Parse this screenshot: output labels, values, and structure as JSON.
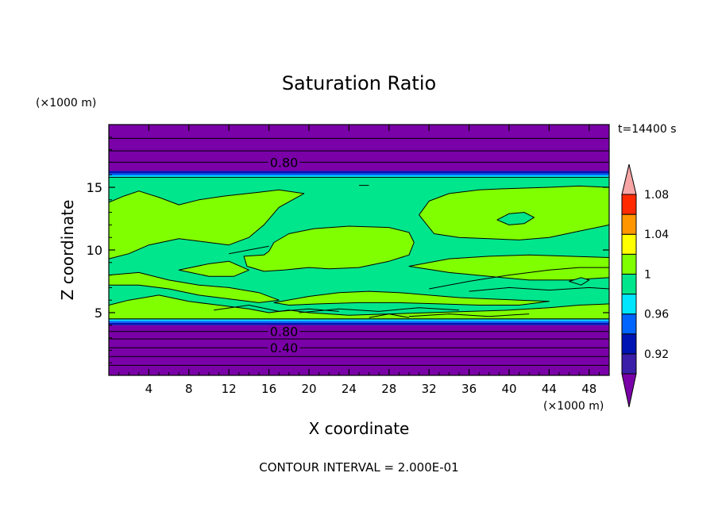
{
  "chart_data": {
    "type": "heatmap",
    "title": "Saturation Ratio",
    "xlabel": "X coordinate",
    "ylabel": "Z coordinate",
    "x_unit": "(×1000 m)",
    "y_unit": "(×1000 m)",
    "time_label": "t=14400 s",
    "footer": "CONTOUR INTERVAL = 2.000E-01",
    "xlim": [
      0,
      50
    ],
    "ylim": [
      0,
      20
    ],
    "x_ticks": [
      4,
      8,
      12,
      16,
      20,
      24,
      28,
      32,
      36,
      40,
      44,
      48
    ],
    "y_ticks": [
      5,
      10,
      15
    ],
    "contour_labels": [
      {
        "text": "0.80",
        "x": 17.5,
        "z": 17.0
      },
      {
        "text": "0.80",
        "x": 17.5,
        "z": 3.5
      },
      {
        "text": "0.40",
        "x": 17.5,
        "z": 2.2
      }
    ],
    "colorbar": {
      "levels": [
        0.9,
        0.92,
        0.94,
        0.96,
        0.98,
        1.0,
        1.02,
        1.04,
        1.06,
        1.08,
        1.1
      ],
      "colors": [
        "#7a00a8",
        "#3b1fa8",
        "#0014b4",
        "#0064ff",
        "#00e6ff",
        "#00e68c",
        "#7fff00",
        "#ffff00",
        "#ff9600",
        "#ff2a00",
        "#f7a5a5"
      ],
      "tick_labels": [
        "0.92",
        "0.96",
        "1",
        "1.04",
        "1.08"
      ]
    },
    "bands": [
      {
        "z0": 0,
        "z1": 4.0,
        "color": "#7a00a8"
      },
      {
        "z0": 4.0,
        "z1": 4.2,
        "color": "#0014b4"
      },
      {
        "z0": 4.2,
        "z1": 4.35,
        "color": "#0064ff"
      },
      {
        "z0": 4.35,
        "z1": 4.5,
        "color": "#00e6ff"
      },
      {
        "z0": 4.5,
        "z1": 15.8,
        "color": "#00e68c"
      },
      {
        "z0": 15.8,
        "z1": 15.95,
        "color": "#00e6ff"
      },
      {
        "z0": 15.95,
        "z1": 16.1,
        "color": "#0064ff"
      },
      {
        "z0": 16.1,
        "z1": 16.3,
        "color": "#0014b4"
      },
      {
        "z0": 16.3,
        "z1": 20,
        "color": "#7a00a8"
      }
    ],
    "contour_lines_z": [
      0.8,
      1.5,
      2.2,
      2.9,
      3.5,
      17.0,
      17.9,
      18.9
    ],
    "regions": [
      {
        "fill": "#7fff00",
        "points": [
          [
            0,
            13.8
          ],
          [
            1.5,
            14.3
          ],
          [
            3,
            14.7
          ],
          [
            5,
            14.2
          ],
          [
            7,
            13.6
          ],
          [
            9,
            14.0
          ],
          [
            11.5,
            14.3
          ],
          [
            15,
            14.6
          ],
          [
            17,
            14.8
          ],
          [
            19.5,
            14.5
          ],
          [
            17,
            13.4
          ],
          [
            15.5,
            12.0
          ],
          [
            14,
            11.0
          ],
          [
            12,
            10.4
          ],
          [
            10,
            10.6
          ],
          [
            7,
            10.9
          ],
          [
            4,
            10.4
          ],
          [
            2,
            9.7
          ],
          [
            0,
            9.3
          ]
        ]
      },
      {
        "fill": "#7fff00",
        "points": [
          [
            0,
            5.6
          ],
          [
            2,
            6.0
          ],
          [
            5,
            6.4
          ],
          [
            8,
            5.9
          ],
          [
            11,
            5.6
          ],
          [
            14,
            5.3
          ],
          [
            16,
            5.0
          ],
          [
            18,
            5.2
          ],
          [
            20,
            5.0
          ],
          [
            24,
            4.8
          ],
          [
            28,
            4.9
          ],
          [
            32,
            5.0
          ],
          [
            36,
            5.1
          ],
          [
            40,
            5.2
          ],
          [
            44,
            5.4
          ],
          [
            47,
            5.6
          ],
          [
            50,
            5.7
          ],
          [
            50,
            4.5
          ],
          [
            0,
            4.5
          ]
        ]
      },
      {
        "fill": "#7fff00",
        "points": [
          [
            13.5,
            9.5
          ],
          [
            15.5,
            9.6
          ],
          [
            16,
            9.9
          ],
          [
            16.5,
            10.6
          ],
          [
            18,
            11.3
          ],
          [
            20.5,
            11.7
          ],
          [
            24,
            11.9
          ],
          [
            28,
            11.8
          ],
          [
            30,
            11.4
          ],
          [
            30.5,
            10.6
          ],
          [
            30,
            9.6
          ],
          [
            28,
            9.1
          ],
          [
            25,
            8.6
          ],
          [
            22,
            8.5
          ],
          [
            20,
            8.6
          ],
          [
            17.5,
            8.4
          ],
          [
            15.5,
            8.3
          ],
          [
            13.8,
            8.7
          ]
        ]
      },
      {
        "fill": "#7fff00",
        "points": [
          [
            31,
            12.8
          ],
          [
            32,
            13.9
          ],
          [
            34,
            14.5
          ],
          [
            37,
            14.8
          ],
          [
            40,
            14.9
          ],
          [
            44,
            15.0
          ],
          [
            47,
            15.1
          ],
          [
            50,
            15.0
          ],
          [
            50,
            12.0
          ],
          [
            47,
            11.5
          ],
          [
            44,
            11.0
          ],
          [
            41,
            10.8
          ],
          [
            38,
            10.9
          ],
          [
            35,
            11.0
          ],
          [
            32.5,
            11.3
          ]
        ]
      },
      {
        "fill": "#7fff00",
        "points": [
          [
            30,
            8.7
          ],
          [
            34,
            9.3
          ],
          [
            38,
            9.5
          ],
          [
            42,
            9.6
          ],
          [
            46,
            9.5
          ],
          [
            50,
            9.4
          ],
          [
            50,
            7.8
          ],
          [
            46,
            7.6
          ],
          [
            42,
            7.6
          ],
          [
            38,
            7.9
          ],
          [
            34,
            8.2
          ]
        ]
      },
      {
        "fill": "#7fff00",
        "points": [
          [
            0,
            8.0
          ],
          [
            3,
            8.2
          ],
          [
            6,
            7.6
          ],
          [
            9,
            7.2
          ],
          [
            12,
            7.0
          ],
          [
            15,
            6.6
          ],
          [
            17,
            6.0
          ],
          [
            15,
            5.8
          ],
          [
            12,
            6.1
          ],
          [
            9,
            6.4
          ],
          [
            6,
            6.9
          ],
          [
            3,
            7.2
          ],
          [
            0,
            7.2
          ]
        ]
      },
      {
        "fill": "#7fff00",
        "points": [
          [
            7,
            8.4
          ],
          [
            10,
            8.9
          ],
          [
            12,
            9.1
          ],
          [
            14,
            8.4
          ],
          [
            12.5,
            7.9
          ],
          [
            10,
            7.9
          ]
        ]
      },
      {
        "fill": "#7fff00",
        "points": [
          [
            16.5,
            5.8
          ],
          [
            20,
            6.3
          ],
          [
            23,
            6.6
          ],
          [
            26,
            6.7
          ],
          [
            29,
            6.6
          ],
          [
            32,
            6.4
          ],
          [
            35,
            6.2
          ],
          [
            38,
            6.1
          ],
          [
            41,
            6.0
          ],
          [
            44,
            5.9
          ],
          [
            41,
            5.6
          ],
          [
            37,
            5.6
          ],
          [
            33,
            5.7
          ],
          [
            29,
            5.8
          ],
          [
            25,
            5.8
          ],
          [
            21,
            5.7
          ],
          [
            18,
            5.6
          ]
        ]
      },
      {
        "fill": "#00e68c",
        "points": [
          [
            38.8,
            12.4
          ],
          [
            40,
            12.9
          ],
          [
            41.5,
            13.0
          ],
          [
            42.5,
            12.6
          ],
          [
            41.5,
            12.1
          ],
          [
            40,
            12.0
          ]
        ]
      },
      {
        "fill": "#00e68c",
        "points": [
          [
            46,
            7.5
          ],
          [
            47.2,
            7.8
          ],
          [
            48,
            7.6
          ],
          [
            47.2,
            7.2
          ]
        ]
      }
    ],
    "extra_lines": [
      [
        [
          10.5,
          5.2
        ],
        [
          14,
          5.6
        ],
        [
          17,
          5.1
        ],
        [
          20,
          5.3
        ],
        [
          23,
          5.1
        ]
      ],
      [
        [
          19,
          5.0
        ],
        [
          23,
          5.3
        ],
        [
          27,
          5.1
        ],
        [
          31,
          5.4
        ],
        [
          35,
          5.2
        ]
      ],
      [
        [
          30,
          4.7
        ],
        [
          34,
          4.9
        ],
        [
          38,
          4.7
        ],
        [
          42,
          4.9
        ]
      ],
      [
        [
          26,
          4.6
        ],
        [
          28,
          4.9
        ],
        [
          30,
          4.6
        ]
      ],
      [
        [
          36,
          6.7
        ],
        [
          40,
          7.0
        ],
        [
          44,
          6.8
        ],
        [
          48,
          7.0
        ],
        [
          50,
          6.9
        ]
      ],
      [
        [
          32,
          6.9
        ],
        [
          36,
          7.5
        ],
        [
          40,
          8.0
        ],
        [
          44,
          8.4
        ],
        [
          47,
          8.6
        ],
        [
          50,
          8.6
        ]
      ],
      [
        [
          12,
          9.7
        ],
        [
          14,
          10.0
        ],
        [
          16,
          10.3
        ]
      ],
      [
        [
          25,
          15.15
        ],
        [
          26,
          15.15
        ]
      ]
    ]
  }
}
